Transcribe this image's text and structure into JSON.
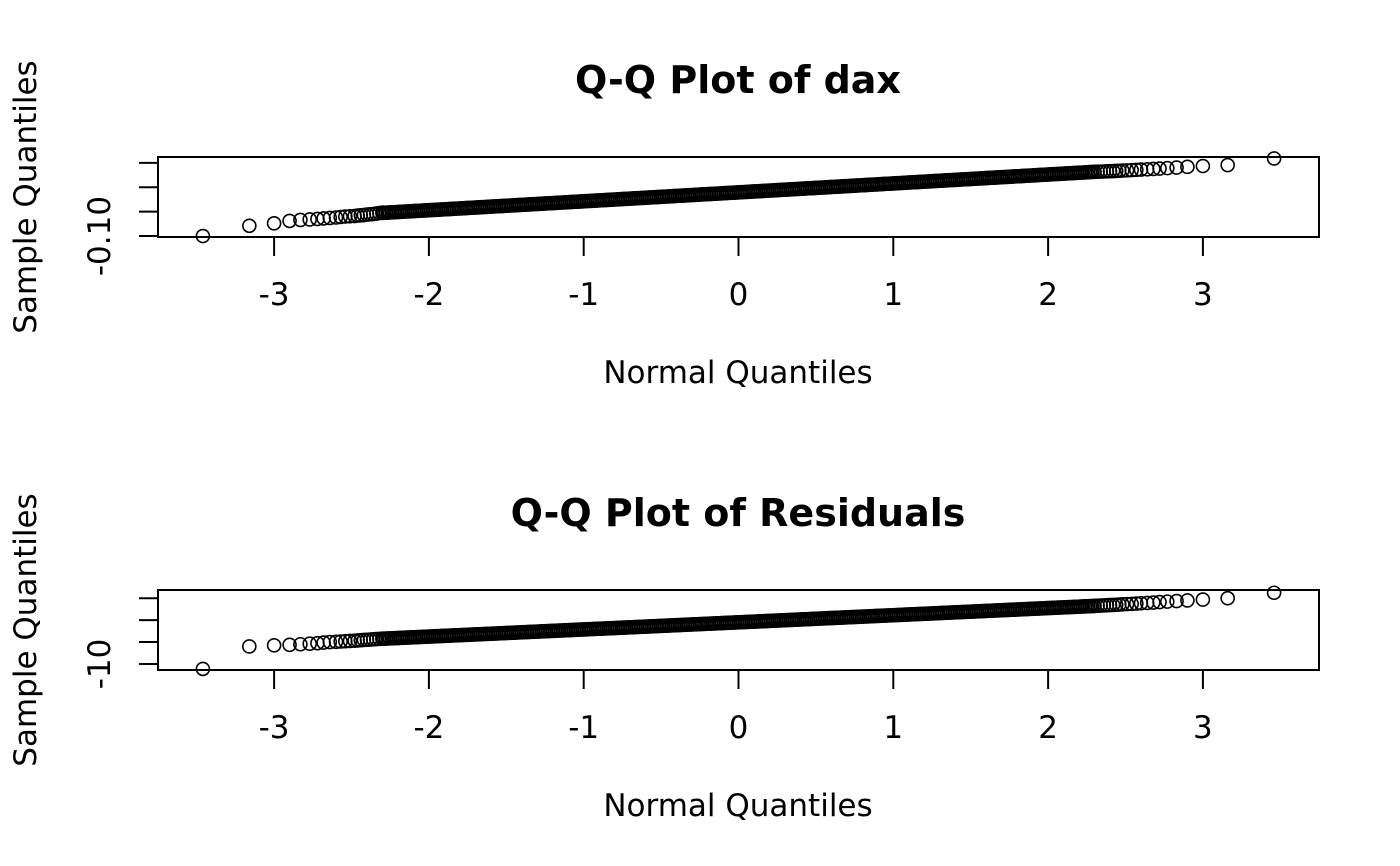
{
  "chart_data": [
    {
      "type": "scatter",
      "title": "Q-Q Plot of dax",
      "xlabel": "Normal Quantiles",
      "ylabel": "Sample Quantiles",
      "xlim": [
        -3.75,
        3.75
      ],
      "ylim": [
        -0.102,
        0.062
      ],
      "x_ticks": [
        -3,
        -2,
        -1,
        0,
        1,
        2,
        3
      ],
      "x_tick_labels": [
        "-3",
        "-2",
        "-1",
        "0",
        "1",
        "2",
        "3"
      ],
      "y_ticks": [
        -0.1,
        -0.05,
        0.0,
        0.05
      ],
      "y_tick_labels": [
        "-0.10",
        "",
        "",
        ""
      ],
      "grid": false,
      "tail_points": {
        "x": [
          -3.46,
          -3.16,
          -3.0,
          -2.9,
          -2.83,
          -2.77,
          -2.72,
          -2.68,
          -2.64,
          -2.6,
          -2.57,
          -2.54,
          -2.51,
          -2.48,
          -2.46,
          -2.44,
          -2.42,
          -2.4,
          -2.38,
          -2.36,
          -2.34,
          -2.32,
          -2.3,
          2.3,
          2.32,
          2.34,
          2.36,
          2.38,
          2.4,
          2.42,
          2.44,
          2.46,
          2.48,
          2.51,
          2.54,
          2.57,
          2.6,
          2.64,
          2.68,
          2.72,
          2.77,
          2.83,
          2.9,
          3.0,
          3.16,
          3.46
        ],
        "y": [
          -0.1,
          -0.079,
          -0.074,
          -0.069,
          -0.067,
          -0.066,
          -0.065,
          -0.064,
          -0.063,
          -0.062,
          -0.061,
          -0.06,
          -0.0595,
          -0.059,
          -0.058,
          -0.0575,
          -0.057,
          -0.056,
          -0.0555,
          -0.055,
          -0.054,
          -0.053,
          -0.052,
          0.0315,
          0.0318,
          0.032,
          0.0323,
          0.0326,
          0.0329,
          0.0332,
          0.0335,
          0.0338,
          0.0342,
          0.0346,
          0.0351,
          0.0356,
          0.0362,
          0.0368,
          0.0375,
          0.0383,
          0.0392,
          0.0404,
          0.0418,
          0.0435,
          0.0455,
          0.059
        ]
      },
      "body_trend": {
        "x_range": [
          -2.3,
          2.3
        ],
        "intercept": -0.0105,
        "slope": 0.0183
      }
    },
    {
      "type": "scatter",
      "title": "Q-Q Plot of Residuals",
      "xlabel": "Normal Quantiles",
      "ylabel": "Sample Quantiles",
      "xlim": [
        -3.75,
        3.75
      ],
      "ylim": [
        -11.1,
        3.5
      ],
      "x_ticks": [
        -3,
        -2,
        -1,
        0,
        1,
        2,
        3
      ],
      "x_tick_labels": [
        "-3",
        "-2",
        "-1",
        "0",
        "1",
        "2",
        "3"
      ],
      "y_ticks": [
        -10,
        -6,
        -2,
        2
      ],
      "y_tick_labels": [
        "-10",
        "",
        "",
        ""
      ],
      "grid": false,
      "tail_points": {
        "x": [
          -3.46,
          -3.16,
          -3.0,
          -2.9,
          -2.83,
          -2.77,
          -2.72,
          -2.68,
          -2.64,
          -2.6,
          -2.57,
          -2.54,
          -2.51,
          -2.48,
          -2.46,
          -2.44,
          -2.42,
          -2.4,
          -2.38,
          -2.36,
          -2.34,
          -2.32,
          -2.3,
          2.3,
          2.32,
          2.34,
          2.36,
          2.38,
          2.4,
          2.42,
          2.44,
          2.46,
          2.48,
          2.51,
          2.54,
          2.57,
          2.6,
          2.64,
          2.68,
          2.72,
          2.77,
          2.83,
          2.9,
          3.0,
          3.16,
          3.46
        ],
        "y": [
          -10.9,
          -6.8,
          -6.6,
          -6.5,
          -6.4,
          -6.3,
          -6.2,
          -6.1,
          -6.0,
          -5.95,
          -5.9,
          -5.85,
          -5.8,
          -5.75,
          -5.7,
          -5.66,
          -5.62,
          -5.58,
          -5.54,
          -5.5,
          -5.46,
          -5.42,
          -5.38,
          0.6,
          0.63,
          0.66,
          0.69,
          0.72,
          0.75,
          0.78,
          0.81,
          0.84,
          0.88,
          0.92,
          0.97,
          1.02,
          1.08,
          1.14,
          1.21,
          1.29,
          1.38,
          1.48,
          1.6,
          1.75,
          2.0,
          3.0
        ]
      },
      "body_trend": {
        "x_range": [
          -2.3,
          2.3
        ],
        "intercept": -2.4,
        "slope": 1.3
      }
    }
  ]
}
